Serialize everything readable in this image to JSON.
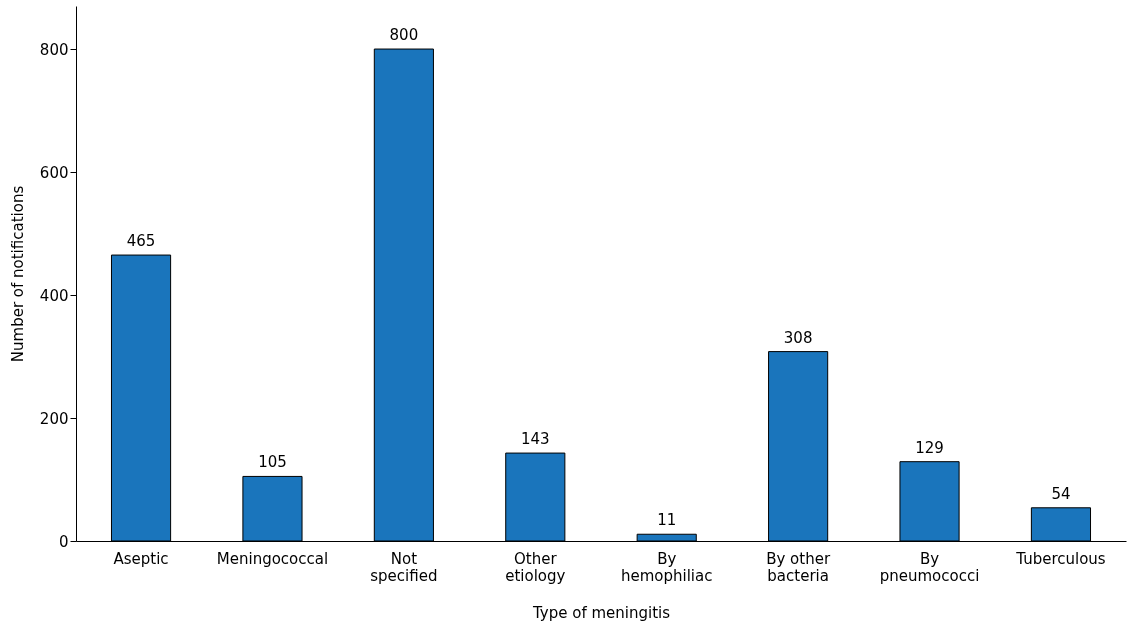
{
  "chart_data": {
    "type": "bar",
    "xlabel": "Type of meningitis",
    "ylabel": "Number of notifications",
    "categories": [
      "Aseptic",
      "Meningococcal",
      "Not\nspecified",
      "Other\netiology",
      "By\nhemophiliac",
      "By other\nbacteria",
      "By\npneumococci",
      "Tuberculous"
    ],
    "values": [
      465,
      105,
      800,
      143,
      11,
      308,
      129,
      54
    ],
    "color": "#1a75bc",
    "ylim": [
      0,
      870
    ],
    "yticks": [
      0,
      200,
      400,
      600,
      800
    ],
    "grid": false,
    "data_labels": true
  }
}
